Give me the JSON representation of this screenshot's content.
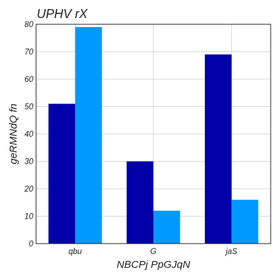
{
  "chart_data": {
    "type": "bar",
    "title": "UPHV rX",
    "xlabel": "NBCPj PpGJqN",
    "ylabel": "geRMNdQ fn",
    "categories": [
      "qbu",
      "G",
      "jaS"
    ],
    "series": [
      {
        "values": [
          51,
          30,
          69
        ],
        "color": "#0000aa"
      },
      {
        "values": [
          79,
          12,
          16
        ],
        "color": "#0099ff"
      }
    ],
    "ylim": [
      0,
      80
    ],
    "yticks": [
      0,
      10,
      20,
      30,
      40,
      50,
      60,
      70,
      80
    ],
    "grid": true,
    "legend": "none"
  }
}
